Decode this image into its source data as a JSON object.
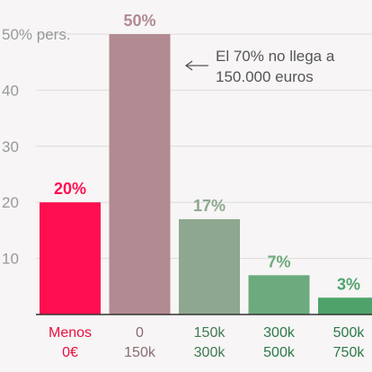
{
  "chart_data": {
    "type": "bar",
    "title": "",
    "xlabel": "",
    "ylabel": "",
    "ylim": [
      0,
      50
    ],
    "yticks": [
      10,
      20,
      30,
      40,
      50
    ],
    "ytick_labels": [
      "10",
      "20",
      "30",
      "40",
      "50% pers."
    ],
    "grid": true,
    "categories": [
      {
        "line1": "Menos",
        "line2": "0€"
      },
      {
        "line1": "0",
        "line2": "150k"
      },
      {
        "line1": "150k",
        "line2": "300k"
      },
      {
        "line1": "300k",
        "line2": "500k"
      },
      {
        "line1": "500k",
        "line2": "750k"
      }
    ],
    "values": [
      20,
      50,
      17,
      7,
      3
    ],
    "value_labels": [
      "20%",
      "50%",
      "17%",
      "7%",
      "3%"
    ],
    "bar_colors": [
      "#ff0f50",
      "#b28a91",
      "#8da88f",
      "#6cab7d",
      "#4ea36b"
    ],
    "label_colors": [
      "#ff0f50",
      "#b28a91",
      "#8da88f",
      "#6cab7d",
      "#4ea36b"
    ],
    "category_label_colors": [
      "#e8103f",
      "#8a6c72",
      "#3e7a53",
      "#2e7a4a",
      "#2e7a4a"
    ],
    "annotation": {
      "line1": "El 70% no llega a",
      "line2": "150.000 euros"
    }
  }
}
